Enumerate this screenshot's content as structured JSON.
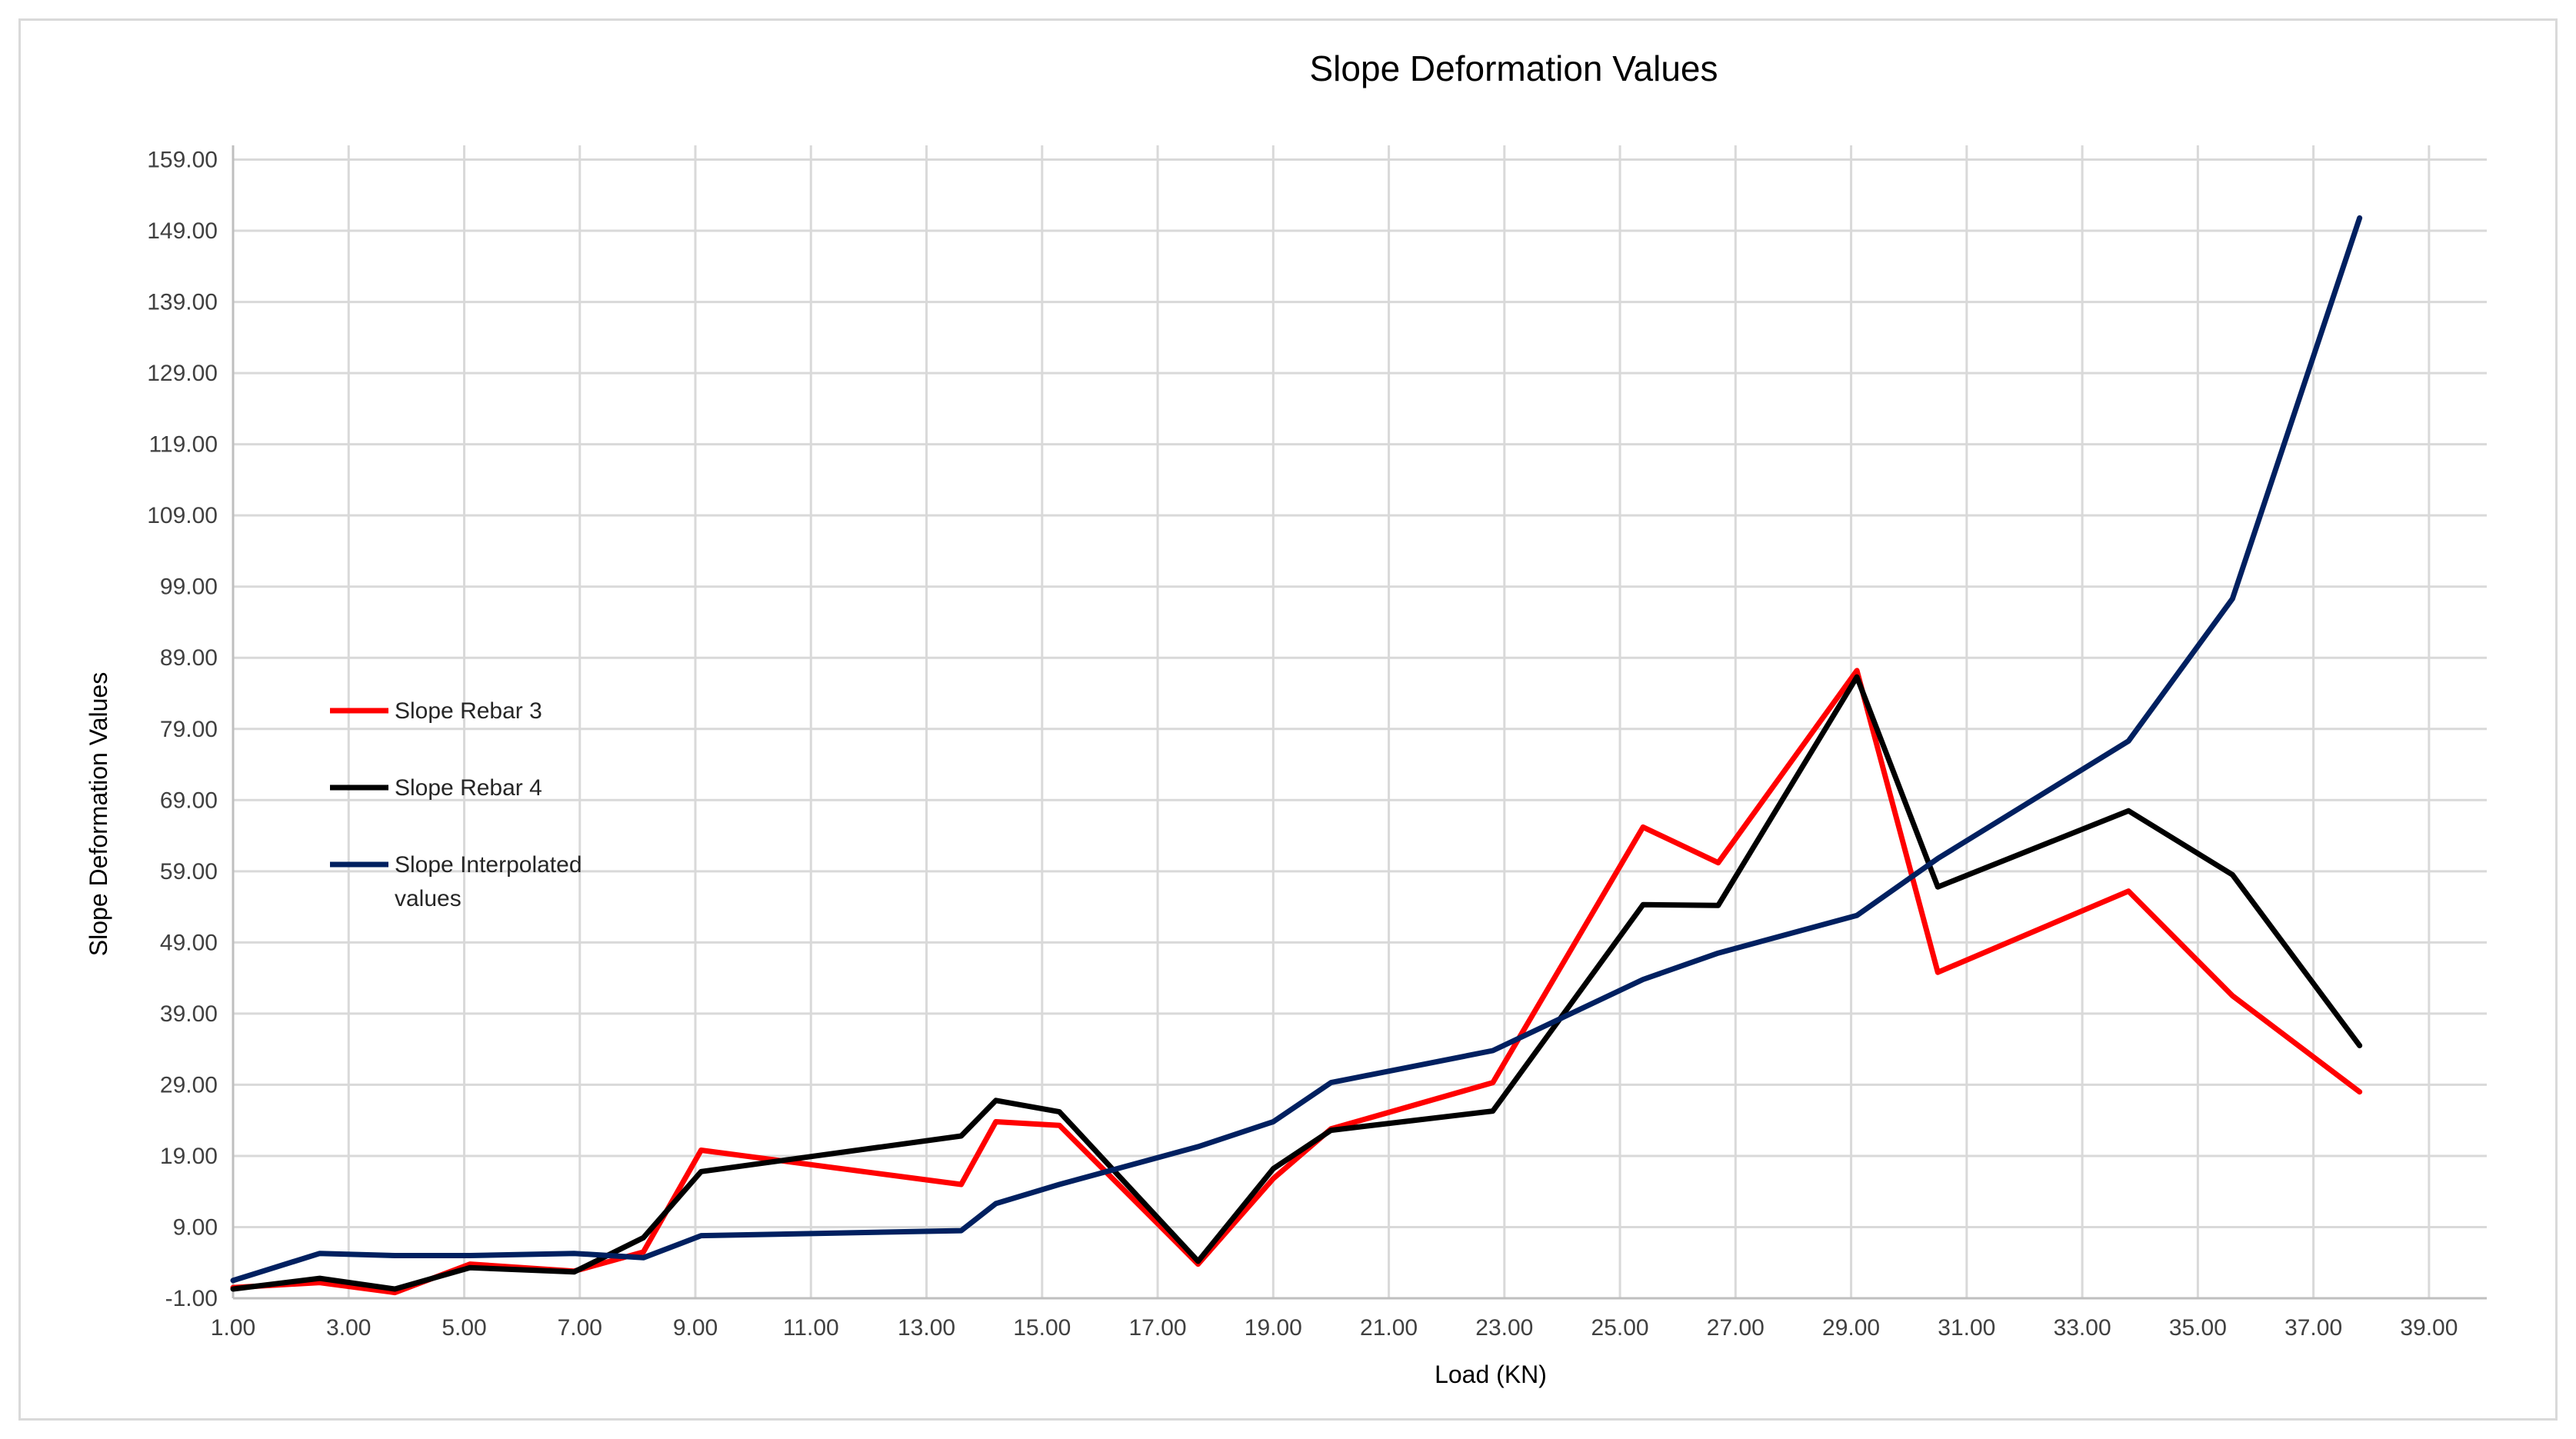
{
  "chart_data": {
    "type": "line",
    "title": "Slope Deformation Values",
    "xlabel": "Load (KN)",
    "ylabel": "Slope Deformation Values",
    "xlim": [
      1,
      40
    ],
    "ylim": [
      -1,
      161
    ],
    "x_ticks": [
      "1.00",
      "3.00",
      "5.00",
      "7.00",
      "9.00",
      "11.00",
      "13.00",
      "15.00",
      "17.00",
      "19.00",
      "21.00",
      "23.00",
      "25.00",
      "27.00",
      "29.00",
      "31.00",
      "33.00",
      "35.00",
      "37.00",
      "39.00"
    ],
    "y_ticks": [
      "-1.00",
      "9.00",
      "19.00",
      "29.00",
      "39.00",
      "49.00",
      "59.00",
      "69.00",
      "79.00",
      "89.00",
      "99.00",
      "109.00",
      "119.00",
      "129.00",
      "139.00",
      "149.00",
      "159.00"
    ],
    "grid": true,
    "legend_position": "left",
    "series": [
      {
        "name": "Slope Rebar 3",
        "color": "#ff0000",
        "x": [
          1.0,
          2.5,
          3.8,
          5.1,
          6.9,
          8.1,
          9.1,
          13.6,
          14.2,
          15.3,
          17.7,
          19.0,
          20.0,
          22.8,
          25.4,
          26.7,
          29.1,
          30.5,
          33.8,
          35.6,
          37.8
        ],
        "y": [
          0.5,
          1.2,
          -0.2,
          3.8,
          2.8,
          5.5,
          19.8,
          15.0,
          23.8,
          23.3,
          3.8,
          15.8,
          22.8,
          29.3,
          65.2,
          60.2,
          87.2,
          44.8,
          56.2,
          41.5,
          28.0
        ]
      },
      {
        "name": "Slope Rebar 4",
        "color": "#000000",
        "x": [
          1.0,
          2.5,
          3.8,
          5.1,
          6.9,
          8.1,
          9.1,
          13.6,
          14.2,
          15.3,
          17.7,
          19.0,
          20.0,
          22.8,
          25.4,
          26.7,
          29.1,
          30.5,
          33.8,
          35.6,
          37.8
        ],
        "y": [
          0.3,
          1.8,
          0.3,
          3.3,
          2.7,
          7.5,
          16.8,
          21.8,
          26.8,
          25.2,
          4.2,
          17.2,
          22.6,
          25.3,
          54.3,
          54.2,
          86.3,
          56.8,
          67.5,
          58.5,
          34.5
        ]
      },
      {
        "name": "Slope Interpolated values",
        "color": "#002060",
        "x": [
          1.0,
          2.5,
          3.8,
          5.1,
          6.9,
          8.1,
          9.1,
          13.6,
          14.2,
          15.3,
          17.7,
          19.0,
          20.0,
          22.8,
          25.4,
          26.7,
          29.1,
          30.5,
          33.8,
          35.6,
          37.8
        ],
        "y": [
          1.5,
          5.3,
          5.0,
          5.0,
          5.3,
          4.7,
          7.8,
          8.5,
          12.3,
          15.0,
          20.3,
          23.8,
          29.3,
          33.8,
          43.8,
          47.5,
          52.8,
          60.8,
          77.3,
          97.3,
          150.8
        ]
      }
    ]
  }
}
